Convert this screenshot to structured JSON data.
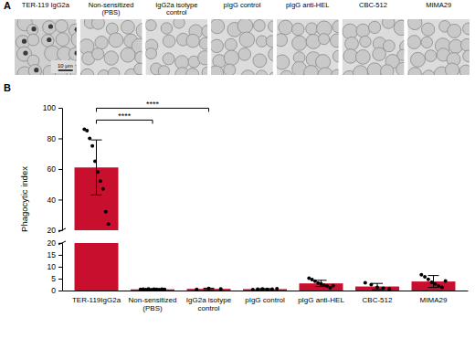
{
  "panel_a": {
    "panel_label": "A",
    "titles": [
      "TER-119 IgG2a",
      "Non-sensitized (PBS)",
      "IgG2a isotype control",
      "pIgG control",
      "pIgG anti-HEL",
      "CBC-512",
      "MIMA29"
    ],
    "scale_bar": "10 μm"
  },
  "chart_data": {
    "type": "bar",
    "panel_label": "B",
    "y_label": "Phagocytic index",
    "categories": [
      "TER-119IgG2a",
      "Non-sensitized (PBS)",
      "IgG2a isotype control",
      "pIgG control",
      "pIgG anti-HEL",
      "CBC-512",
      "MIMA29"
    ],
    "values": [
      61,
      0.5,
      0.7,
      0.6,
      3.0,
      1.7,
      3.8
    ],
    "errors": [
      18,
      0.2,
      0.3,
      0.2,
      1.3,
      1.3,
      2.5
    ],
    "points": [
      [
        86,
        85,
        80,
        75,
        65,
        58,
        52,
        47,
        32,
        24
      ],
      [
        0.5,
        0.6,
        0.4,
        0.7,
        0.3,
        0.6,
        0.5,
        0.4,
        0.6,
        0.5
      ],
      [
        0.5,
        0.9,
        0.7
      ],
      [
        0.4,
        0.6,
        0.7,
        0.5,
        0.6,
        0.8
      ],
      [
        5.2,
        4.6,
        3.9,
        3.2,
        2.8,
        2.2,
        1.9,
        1.2,
        2.0
      ],
      [
        3.3,
        2.5,
        1.3,
        1.0,
        0.7
      ],
      [
        6.6,
        5.8,
        4.7,
        3.5,
        2.8,
        1.9,
        1.3,
        4.0
      ]
    ],
    "color": "#c8102e",
    "y_segments": [
      {
        "ylim": [
          0,
          20
        ],
        "yticks": [
          0,
          5,
          10,
          15,
          20
        ]
      },
      {
        "ylim": [
          20,
          100
        ],
        "yticks": [
          20,
          40,
          60,
          80,
          100
        ]
      }
    ],
    "annotations": [
      {
        "text": "****",
        "from": "TER-119IgG2a",
        "to": "Non-sensitized (PBS)"
      },
      {
        "text": "****",
        "from": "TER-119IgG2a",
        "to": "IgG2a isotype control"
      }
    ]
  }
}
